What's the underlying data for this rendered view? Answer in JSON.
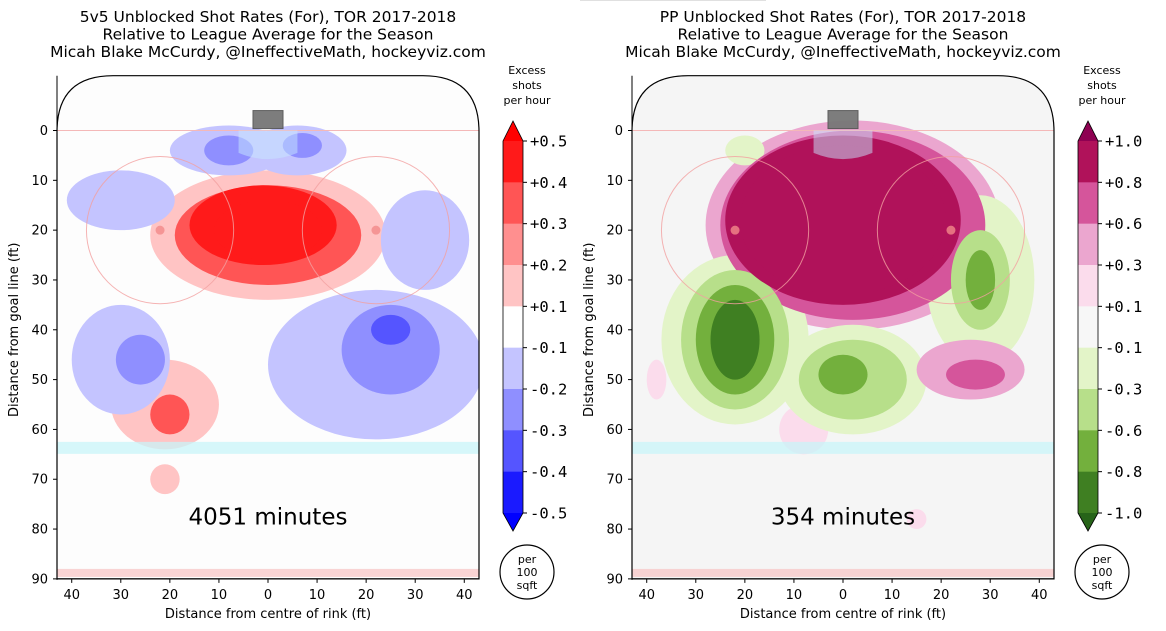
{
  "chart_data": [
    {
      "type": "heatmap",
      "title_lines": [
        "5v5 Unblocked Shot Rates (For), TOR 2017-2018",
        "Relative to League Average for the Season",
        "Micah Blake McCurdy, @IneffectiveMath, hockeyviz.com"
      ],
      "xlabel": "Distance from centre of rink (ft)",
      "ylabel": "Distance from goal line (ft)",
      "xlim": [
        -43,
        43
      ],
      "ylim": [
        90,
        -11
      ],
      "x_ticks": [
        -40,
        -30,
        -20,
        -10,
        0,
        10,
        20,
        30,
        40
      ],
      "x_tick_labels": [
        "40",
        "30",
        "20",
        "10",
        "0",
        "10",
        "20",
        "30",
        "40"
      ],
      "y_ticks": [
        0,
        10,
        20,
        30,
        40,
        50,
        60,
        70,
        80,
        90
      ],
      "y_tick_labels": [
        "0",
        "10",
        "20",
        "30",
        "40",
        "50",
        "60",
        "70",
        "80",
        "90"
      ],
      "annotation": "4051 minutes",
      "colorbar": {
        "title_lines": [
          "Excess",
          "shots",
          "per hour"
        ],
        "labels": [
          "+0.5",
          "+0.4",
          "+0.3",
          "+0.2",
          "+0.1",
          "-0.1",
          "-0.2",
          "-0.3",
          "-0.4",
          "-0.5"
        ],
        "bands": [
          "#ff1a1a",
          "#ff5555",
          "#ff8f8f",
          "#ffc4c4",
          "#ffffff",
          "#c4c4ff",
          "#8f8fff",
          "#5555ff",
          "#1a1aff"
        ],
        "top_arrow_color": "#ff0000",
        "bottom_arrow_color": "#0000ff",
        "unit_lines": [
          "per",
          "100",
          "sqft"
        ]
      },
      "regions": [
        {
          "x": 0,
          "y": 20,
          "level": 0.5,
          "rx": 11,
          "ry": 6
        },
        {
          "x": -1,
          "y": 19,
          "level": 0.4,
          "rx": 15,
          "ry": 8
        },
        {
          "x": 0,
          "y": 21,
          "level": 0.3,
          "rx": 19,
          "ry": 10
        },
        {
          "x": 0,
          "y": 21,
          "level": 0.15,
          "rx": 24,
          "ry": 13
        },
        {
          "x": -20,
          "y": 57,
          "level": 0.3,
          "rx": 4,
          "ry": 4
        },
        {
          "x": -21,
          "y": 55,
          "level": 0.15,
          "rx": 11,
          "ry": 9
        },
        {
          "x": -21,
          "y": 70,
          "level": 0.15,
          "rx": 3,
          "ry": 3
        },
        {
          "x": -8,
          "y": 4,
          "level": -0.15,
          "rx": 12,
          "ry": 5
        },
        {
          "x": 6,
          "y": 4,
          "level": -0.15,
          "rx": 10,
          "ry": 5
        },
        {
          "x": -8,
          "y": 4,
          "level": -0.3,
          "rx": 5,
          "ry": 3
        },
        {
          "x": 7,
          "y": 3,
          "level": -0.3,
          "rx": 4,
          "ry": 2.5
        },
        {
          "x": -30,
          "y": 14,
          "level": -0.15,
          "rx": 11,
          "ry": 6
        },
        {
          "x": 32,
          "y": 22,
          "level": -0.15,
          "rx": 9,
          "ry": 10
        },
        {
          "x": -30,
          "y": 46,
          "level": -0.15,
          "rx": 10,
          "ry": 11
        },
        {
          "x": -26,
          "y": 46,
          "level": -0.25,
          "rx": 5,
          "ry": 5
        },
        {
          "x": 22,
          "y": 47,
          "level": -0.15,
          "rx": 22,
          "ry": 15
        },
        {
          "x": 25,
          "y": 44,
          "level": -0.25,
          "rx": 10,
          "ry": 9
        },
        {
          "x": 25,
          "y": 40,
          "level": -0.35,
          "rx": 4,
          "ry": 3
        }
      ]
    },
    {
      "type": "heatmap",
      "title_lines": [
        "PP Unblocked Shot Rates (For), TOR 2017-2018",
        "Relative to League Average for the Season",
        "Micah Blake McCurdy, @IneffectiveMath, hockeyviz.com"
      ],
      "xlabel": "Distance from centre of rink (ft)",
      "ylabel": "Distance from goal line (ft)",
      "xlim": [
        -43,
        43
      ],
      "ylim": [
        90,
        -11
      ],
      "x_ticks": [
        -40,
        -30,
        -20,
        -10,
        0,
        10,
        20,
        30,
        40
      ],
      "x_tick_labels": [
        "40",
        "30",
        "20",
        "10",
        "0",
        "10",
        "20",
        "30",
        "40"
      ],
      "y_ticks": [
        0,
        10,
        20,
        30,
        40,
        50,
        60,
        70,
        80,
        90
      ],
      "y_tick_labels": [
        "0",
        "10",
        "20",
        "30",
        "40",
        "50",
        "60",
        "70",
        "80",
        "90"
      ],
      "annotation": "354 minutes",
      "colorbar": {
        "title_lines": [
          "Excess",
          "shots",
          "per hour"
        ],
        "labels": [
          "+1.0",
          "+0.8",
          "+0.6",
          "+0.3",
          "+0.1",
          "-0.1",
          "-0.3",
          "-0.6",
          "-0.8",
          "-1.0"
        ],
        "bands": [
          "#b0125a",
          "#d5559b",
          "#eba6cf",
          "#fbdcec",
          "#f7f7f7",
          "#e3f4c8",
          "#b7df8a",
          "#73b03d",
          "#3f7f22"
        ],
        "top_arrow_color": "#8e0152",
        "bottom_arrow_color": "#276419",
        "unit_lines": [
          "per",
          "100",
          "sqft"
        ]
      },
      "regions": [
        {
          "x": 0,
          "y": 18,
          "level": 1.0,
          "rx": 21,
          "ry": 15
        },
        {
          "x": 0,
          "y": 18,
          "level": 0.8,
          "rx": 24,
          "ry": 17
        },
        {
          "x": 2,
          "y": 19,
          "level": 0.6,
          "rx": 27,
          "ry": 19
        },
        {
          "x": 2,
          "y": 19,
          "level": 0.3,
          "rx": 30,
          "ry": 21
        },
        {
          "x": -22,
          "y": 42,
          "level": -1.0,
          "rx": 5,
          "ry": 8
        },
        {
          "x": -22,
          "y": 42,
          "level": -0.8,
          "rx": 8,
          "ry": 11
        },
        {
          "x": -22,
          "y": 42,
          "level": -0.6,
          "rx": 11,
          "ry": 14
        },
        {
          "x": -22,
          "y": 42,
          "level": -0.3,
          "rx": 15,
          "ry": 17
        },
        {
          "x": 0,
          "y": 49,
          "level": -0.8,
          "rx": 5,
          "ry": 4
        },
        {
          "x": 2,
          "y": 50,
          "level": -0.6,
          "rx": 11,
          "ry": 8
        },
        {
          "x": 2,
          "y": 50,
          "level": -0.3,
          "rx": 15,
          "ry": 11
        },
        {
          "x": 28,
          "y": 30,
          "level": -0.8,
          "rx": 3,
          "ry": 6
        },
        {
          "x": 28,
          "y": 30,
          "level": -0.6,
          "rx": 6,
          "ry": 10
        },
        {
          "x": 28,
          "y": 30,
          "level": -0.3,
          "rx": 11,
          "ry": 17
        },
        {
          "x": -20,
          "y": 4,
          "level": -0.3,
          "rx": 4,
          "ry": 3
        },
        {
          "x": 27,
          "y": 49,
          "level": 0.6,
          "rx": 6,
          "ry": 3
        },
        {
          "x": 26,
          "y": 48,
          "level": 0.3,
          "rx": 11,
          "ry": 6
        },
        {
          "x": -8,
          "y": 60,
          "level": 0.1,
          "rx": 5,
          "ry": 5
        },
        {
          "x": -38,
          "y": 50,
          "level": 0.1,
          "rx": 2,
          "ry": 4
        },
        {
          "x": 15,
          "y": 78,
          "level": 0.1,
          "rx": 2,
          "ry": 2
        }
      ]
    }
  ]
}
